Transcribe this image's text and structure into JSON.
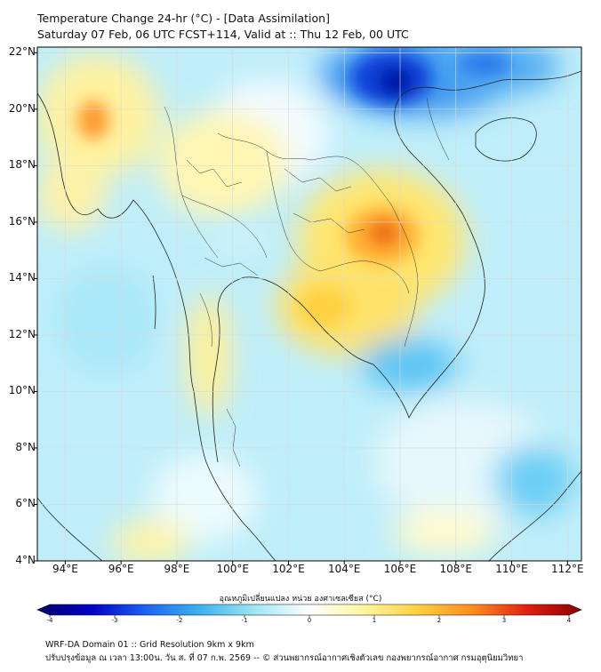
{
  "title_line1": "Temperature Change 24-hr (°C) - [Data Assimilation]",
  "title_line2": "Saturday 07 Feb, 06 UTC FCST+114, Valid at :: Thu 12 Feb, 00 UTC",
  "map": {
    "lon_range": [
      93,
      112.5
    ],
    "lat_range": [
      4,
      22.2
    ],
    "lat_ticks": [
      {
        "value": 22,
        "label": "22°N"
      },
      {
        "value": 20,
        "label": "20°N"
      },
      {
        "value": 18,
        "label": "18°N"
      },
      {
        "value": 16,
        "label": "16°N"
      },
      {
        "value": 14,
        "label": "14°N"
      },
      {
        "value": 12,
        "label": "12°N"
      },
      {
        "value": 10,
        "label": "10°N"
      },
      {
        "value": 8,
        "label": "8°N"
      },
      {
        "value": 6,
        "label": "6°N"
      },
      {
        "value": 4,
        "label": "4°N"
      }
    ],
    "lon_ticks": [
      {
        "value": 94,
        "label": "94°E"
      },
      {
        "value": 96,
        "label": "96°E"
      },
      {
        "value": 98,
        "label": "98°E"
      },
      {
        "value": 100,
        "label": "100°E"
      },
      {
        "value": 102,
        "label": "102°E"
      },
      {
        "value": 104,
        "label": "104°E"
      },
      {
        "value": 106,
        "label": "106°E"
      },
      {
        "value": 108,
        "label": "108°E"
      },
      {
        "value": 110,
        "label": "110°E"
      },
      {
        "value": 112,
        "label": "112°E"
      }
    ],
    "grid": true,
    "warm_spots": [
      {
        "lon": 105.8,
        "lat": 15.4,
        "value": 2.8
      },
      {
        "lon": 95.0,
        "lat": 19.6,
        "value": 2.2
      },
      {
        "lon": 104.2,
        "lat": 13.0,
        "value": 1.4
      },
      {
        "lon": 98.8,
        "lat": 10.5,
        "value": 1.2
      },
      {
        "lon": 101.4,
        "lat": 17.0,
        "value": 1.0
      },
      {
        "lon": 94.5,
        "lat": 17.0,
        "value": 1.0
      },
      {
        "lon": 104.5,
        "lat": 16.0,
        "value": 1.6
      }
    ],
    "cold_spots": [
      {
        "lon": 106.8,
        "lat": 21.1,
        "value": -3.5
      },
      {
        "lon": 109.5,
        "lat": 21.6,
        "value": -2.6
      },
      {
        "lon": 108.0,
        "lat": 11.0,
        "value": -1.4
      },
      {
        "lon": 100.5,
        "lat": 14.6,
        "value": -0.8
      },
      {
        "lon": 110.0,
        "lat": 6.8,
        "value": -1.0
      }
    ]
  },
  "colorbar": {
    "label": "อุณหภูมิเปลี่ยนแปลง หน่วย องศาเซลเซียส (°C)",
    "ticks": [
      "-4",
      "-3",
      "-2",
      "-1",
      "0",
      "1",
      "2",
      "3",
      "4"
    ],
    "vmin": -4,
    "vmax": 4,
    "colors": [
      "#00006a",
      "#0000c8",
      "#1e64f0",
      "#3cb4f0",
      "#9fe6f4",
      "#ffffff",
      "#fff6a0",
      "#ffd040",
      "#ff8c1e",
      "#e02010",
      "#8a0000"
    ]
  },
  "footer_line1": "WRF-DA Domain 01 :: Grid Resolution 9km x 9km",
  "footer_line2": "ปรับปรุงข้อมูล ณ เวลา 13:00น. วัน ส. ที่ 07 ก.พ. 2569 -- © ส่วนพยากรณ์อากาศเชิงตัวเลข กองพยากรณ์อากาศ กรมอุตุนิยมวิทยา"
}
